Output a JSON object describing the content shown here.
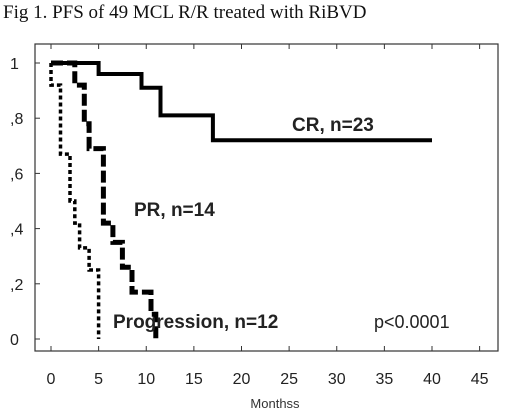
{
  "chart_data": {
    "type": "line",
    "title": "Fig 1. PFS of 49 MCL R/R treated with RiBVD",
    "xlabel": "Monthss",
    "ylabel": "",
    "xlim": [
      -1,
      47
    ],
    "ylim": [
      -0.05,
      1.08
    ],
    "x_ticks": [
      "0",
      "5",
      "10",
      "15",
      "20",
      "25",
      "30",
      "35",
      "40",
      "45"
    ],
    "x_tick_values": [
      0,
      5,
      10,
      15,
      20,
      25,
      30,
      35,
      40,
      45
    ],
    "y_ticks": [
      "1",
      ",8",
      ",6",
      ",4",
      ",2",
      "0"
    ],
    "y_tick_values": [
      1,
      0.8,
      0.6,
      0.4,
      0.2,
      0
    ],
    "grid": false,
    "legend": "none",
    "series": [
      {
        "name": "CR, n=23",
        "line_style": "solid",
        "color": "#000000",
        "steps": [
          [
            0,
            1
          ],
          [
            5,
            1
          ],
          [
            5,
            0.96
          ],
          [
            9.5,
            0.96
          ],
          [
            9.5,
            0.91
          ],
          [
            11.5,
            0.91
          ],
          [
            11.5,
            0.81
          ],
          [
            17,
            0.81
          ],
          [
            17,
            0.72
          ],
          [
            40,
            0.72
          ]
        ]
      },
      {
        "name": "PR, n=14",
        "line_style": "dashed",
        "color": "#000000",
        "steps": [
          [
            0,
            1
          ],
          [
            2.5,
            1
          ],
          [
            2.5,
            0.92
          ],
          [
            3.5,
            0.92
          ],
          [
            3.5,
            0.78
          ],
          [
            4,
            0.78
          ],
          [
            4,
            0.69
          ],
          [
            5.5,
            0.69
          ],
          [
            5.5,
            0.42
          ],
          [
            6.5,
            0.42
          ],
          [
            6.5,
            0.35
          ],
          [
            7.5,
            0.35
          ],
          [
            7.5,
            0.26
          ],
          [
            8.5,
            0.26
          ],
          [
            8.5,
            0.17
          ],
          [
            10.5,
            0.17
          ],
          [
            10.5,
            0.09
          ],
          [
            11,
            0.09
          ],
          [
            11,
            0
          ]
        ]
      },
      {
        "name": "Progression, n=12",
        "line_style": "dotted",
        "color": "#000000",
        "steps": [
          [
            0,
            1
          ],
          [
            0,
            0.92
          ],
          [
            1,
            0.92
          ],
          [
            1,
            0.67
          ],
          [
            2,
            0.67
          ],
          [
            2,
            0.5
          ],
          [
            2.5,
            0.5
          ],
          [
            2.5,
            0.42
          ],
          [
            3,
            0.42
          ],
          [
            3,
            0.33
          ],
          [
            4,
            0.33
          ],
          [
            4,
            0.25
          ],
          [
            5,
            0.25
          ],
          [
            5,
            0
          ]
        ]
      }
    ],
    "annotations": [
      "p<0.0001"
    ]
  }
}
